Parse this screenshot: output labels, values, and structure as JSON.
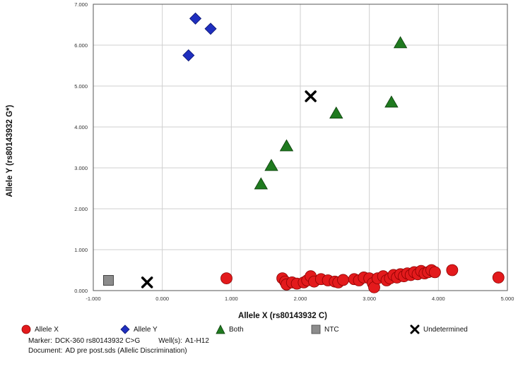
{
  "chart_data": {
    "type": "scatter",
    "xlabel": "Allele X (rs80143932 C)",
    "ylabel": "Allele Y (rs80143932 G*)",
    "xlim": [
      -1.0,
      5.0
    ],
    "ylim": [
      0.0,
      7.0
    ],
    "xticks": [
      "-1.000",
      "0.000",
      "1.000",
      "2.000",
      "3.000",
      "4.000",
      "5.000"
    ],
    "yticks": [
      "0.000",
      "1.000",
      "2.000",
      "3.000",
      "4.000",
      "5.000",
      "6.000",
      "7.000"
    ],
    "grid": true,
    "legend_position": "bottom",
    "series": [
      {
        "name": "Allele X",
        "color": "#e31a1c",
        "marker": "circle",
        "points": [
          [
            0.93,
            0.3
          ],
          [
            1.74,
            0.3
          ],
          [
            1.78,
            0.22
          ],
          [
            1.8,
            0.15
          ],
          [
            1.88,
            0.2
          ],
          [
            1.95,
            0.17
          ],
          [
            2.05,
            0.2
          ],
          [
            2.1,
            0.25
          ],
          [
            2.15,
            0.35
          ],
          [
            2.2,
            0.22
          ],
          [
            2.3,
            0.28
          ],
          [
            2.4,
            0.25
          ],
          [
            2.5,
            0.22
          ],
          [
            2.55,
            0.2
          ],
          [
            2.62,
            0.26
          ],
          [
            2.78,
            0.28
          ],
          [
            2.85,
            0.25
          ],
          [
            2.92,
            0.32
          ],
          [
            3.0,
            0.3
          ],
          [
            3.05,
            0.18
          ],
          [
            3.07,
            0.08
          ],
          [
            3.12,
            0.3
          ],
          [
            3.2,
            0.35
          ],
          [
            3.25,
            0.25
          ],
          [
            3.3,
            0.3
          ],
          [
            3.35,
            0.38
          ],
          [
            3.4,
            0.32
          ],
          [
            3.45,
            0.4
          ],
          [
            3.5,
            0.35
          ],
          [
            3.55,
            0.42
          ],
          [
            3.6,
            0.38
          ],
          [
            3.65,
            0.45
          ],
          [
            3.7,
            0.4
          ],
          [
            3.75,
            0.48
          ],
          [
            3.8,
            0.42
          ],
          [
            3.85,
            0.45
          ],
          [
            3.9,
            0.5
          ],
          [
            3.95,
            0.45
          ],
          [
            4.2,
            0.5
          ],
          [
            4.87,
            0.32
          ]
        ]
      },
      {
        "name": "Allele Y",
        "color": "#1f2fbf",
        "marker": "diamond",
        "points": [
          [
            0.38,
            5.75
          ],
          [
            0.48,
            6.65
          ],
          [
            0.7,
            6.4
          ]
        ]
      },
      {
        "name": "Both",
        "color": "#1f7a1f",
        "marker": "triangle",
        "points": [
          [
            1.43,
            2.6
          ],
          [
            1.58,
            3.05
          ],
          [
            1.8,
            3.53
          ],
          [
            2.52,
            4.33
          ],
          [
            3.32,
            4.6
          ],
          [
            3.45,
            6.05
          ]
        ]
      },
      {
        "name": "NTC",
        "color": "#8c8c8c",
        "marker": "square",
        "points": [
          [
            -0.78,
            0.25
          ]
        ]
      },
      {
        "name": "Undetermined",
        "color": "#000000",
        "marker": "x",
        "points": [
          [
            -0.22,
            0.2
          ],
          [
            2.15,
            4.75
          ]
        ]
      }
    ]
  },
  "footer": {
    "marker_label": "Marker:",
    "marker_value": "DCK-360 rs80143932 C>G",
    "wells_label": "Well(s):",
    "wells_value": "A1-H12",
    "document_label": "Document:",
    "document_value": "AD pre post.sds (Allelic Discrimination)"
  }
}
